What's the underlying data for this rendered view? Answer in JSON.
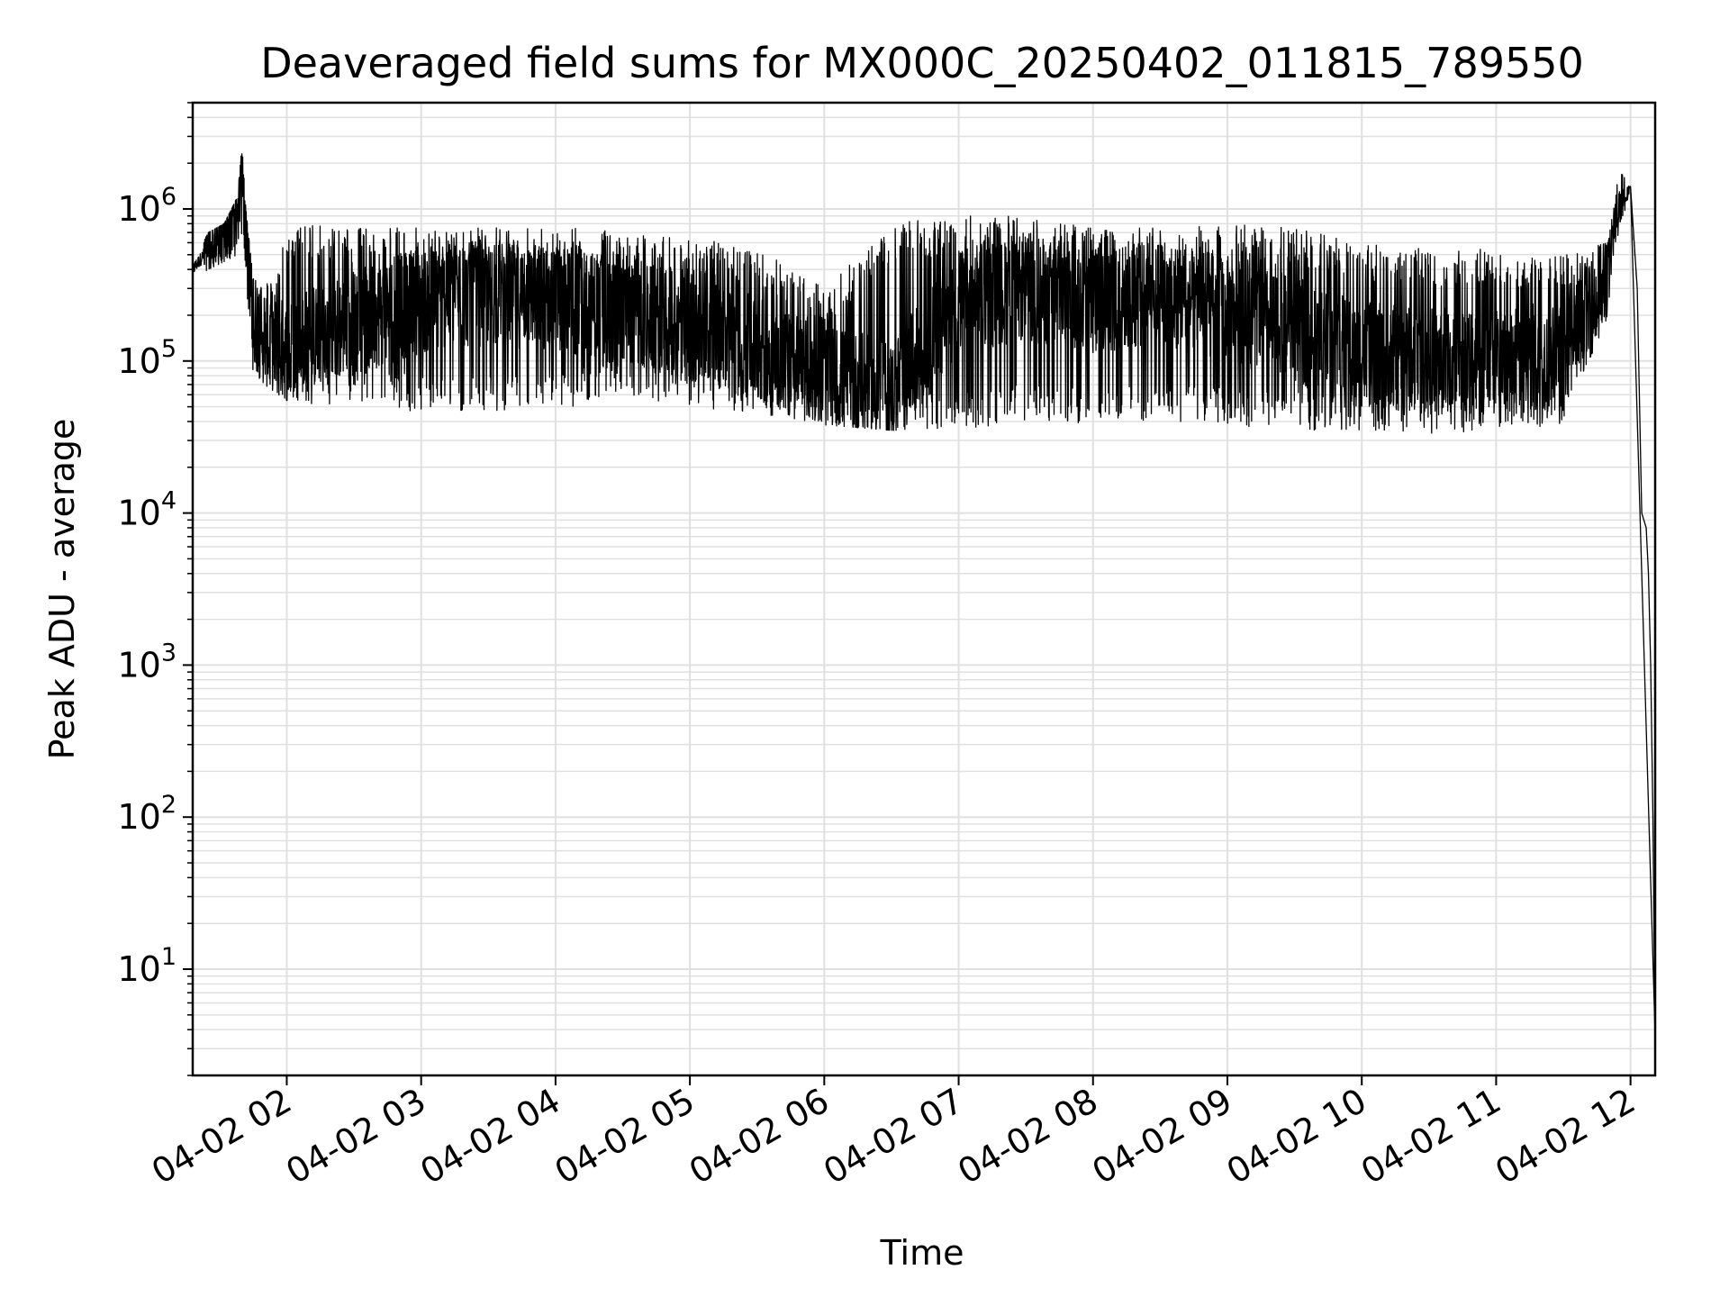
{
  "chart_data": {
    "type": "line",
    "title": "Deaveraged field sums for MX000C_20250402_011815_789550",
    "xlabel": "Time",
    "ylabel": "Peak ADU - average",
    "yscale": "log",
    "grid": true,
    "line_color": "#000000",
    "grid_color": "#e0e0e0",
    "xlim": [
      "2025-04-02 01:18",
      "2025-04-02 12:11"
    ],
    "ylim": [
      2,
      5000000
    ],
    "x_ticks": [
      "04-02 02",
      "04-02 03",
      "04-02 04",
      "04-02 05",
      "04-02 06",
      "04-02 07",
      "04-02 08",
      "04-02 09",
      "04-02 10",
      "04-02 11",
      "04-02 12"
    ],
    "y_ticks": [
      {
        "base": "10",
        "exp": "1",
        "value": 10
      },
      {
        "base": "10",
        "exp": "2",
        "value": 100
      },
      {
        "base": "10",
        "exp": "3",
        "value": 1000
      },
      {
        "base": "10",
        "exp": "4",
        "value": 10000
      },
      {
        "base": "10",
        "exp": "5",
        "value": 100000
      },
      {
        "base": "10",
        "exp": "6",
        "value": 1000000
      }
    ],
    "series": [
      {
        "x": [
          "2025-04-02 01:18",
          "2025-04-02 01:25",
          "2025-04-02 01:32",
          "2025-04-02 01:38",
          "2025-04-02 01:40",
          "2025-04-02 01:42",
          "2025-04-02 01:45",
          "2025-04-02 01:50",
          "2025-04-02 02:00",
          "2025-04-02 02:10",
          "2025-04-02 02:30",
          "2025-04-02 03:00",
          "2025-04-02 03:30",
          "2025-04-02 04:00",
          "2025-04-02 04:30",
          "2025-04-02 05:00",
          "2025-04-02 05:30",
          "2025-04-02 06:00",
          "2025-04-02 06:30",
          "2025-04-02 07:00",
          "2025-04-02 07:30",
          "2025-04-02 08:00",
          "2025-04-02 08:30",
          "2025-04-02 09:00",
          "2025-04-02 09:30",
          "2025-04-02 10:00",
          "2025-04-02 10:30",
          "2025-04-02 11:00",
          "2025-04-02 11:30",
          "2025-04-02 11:50",
          "2025-04-02 11:55",
          "2025-04-02 12:00",
          "2025-04-02 12:03",
          "2025-04-02 12:05",
          "2025-04-02 12:07",
          "2025-04-02 12:08",
          "2025-04-02 12:09",
          "2025-04-02 12:10",
          "2025-04-02 12:11"
        ],
        "values": [
          400000,
          550000,
          700000,
          1100000,
          2600000,
          700000,
          200000,
          150000,
          110000,
          140000,
          180000,
          250000,
          280000,
          260000,
          220000,
          160000,
          120000,
          80000,
          60000,
          250000,
          300000,
          250000,
          280000,
          220000,
          160000,
          110000,
          100000,
          110000,
          105000,
          400000,
          1000000,
          1400000,
          300000,
          10000,
          8000,
          4000,
          1000,
          100,
          3
        ],
        "band_low": [
          350000,
          400000,
          450000,
          500000,
          600000,
          300000,
          80000,
          70000,
          55000,
          50000,
          55000,
          45000,
          45000,
          45000,
          60000,
          50000,
          45000,
          38000,
          35000,
          35000,
          40000,
          38000,
          40000,
          38000,
          35000,
          35000,
          33000,
          35000,
          38000,
          200000,
          800000,
          1200000,
          300000,
          10000,
          8000,
          4000,
          1000,
          100,
          3
        ],
        "band_high": [
          450000,
          700000,
          800000,
          1200000,
          2600000,
          900000,
          350000,
          300000,
          700000,
          800000,
          750000,
          750000,
          750000,
          800000,
          700000,
          650000,
          550000,
          300000,
          800000,
          900000,
          900000,
          800000,
          750000,
          800000,
          750000,
          600000,
          550000,
          550000,
          500000,
          600000,
          1800000,
          1400000,
          300000,
          10000,
          8000,
          4000,
          1000,
          100,
          3
        ]
      }
    ]
  }
}
